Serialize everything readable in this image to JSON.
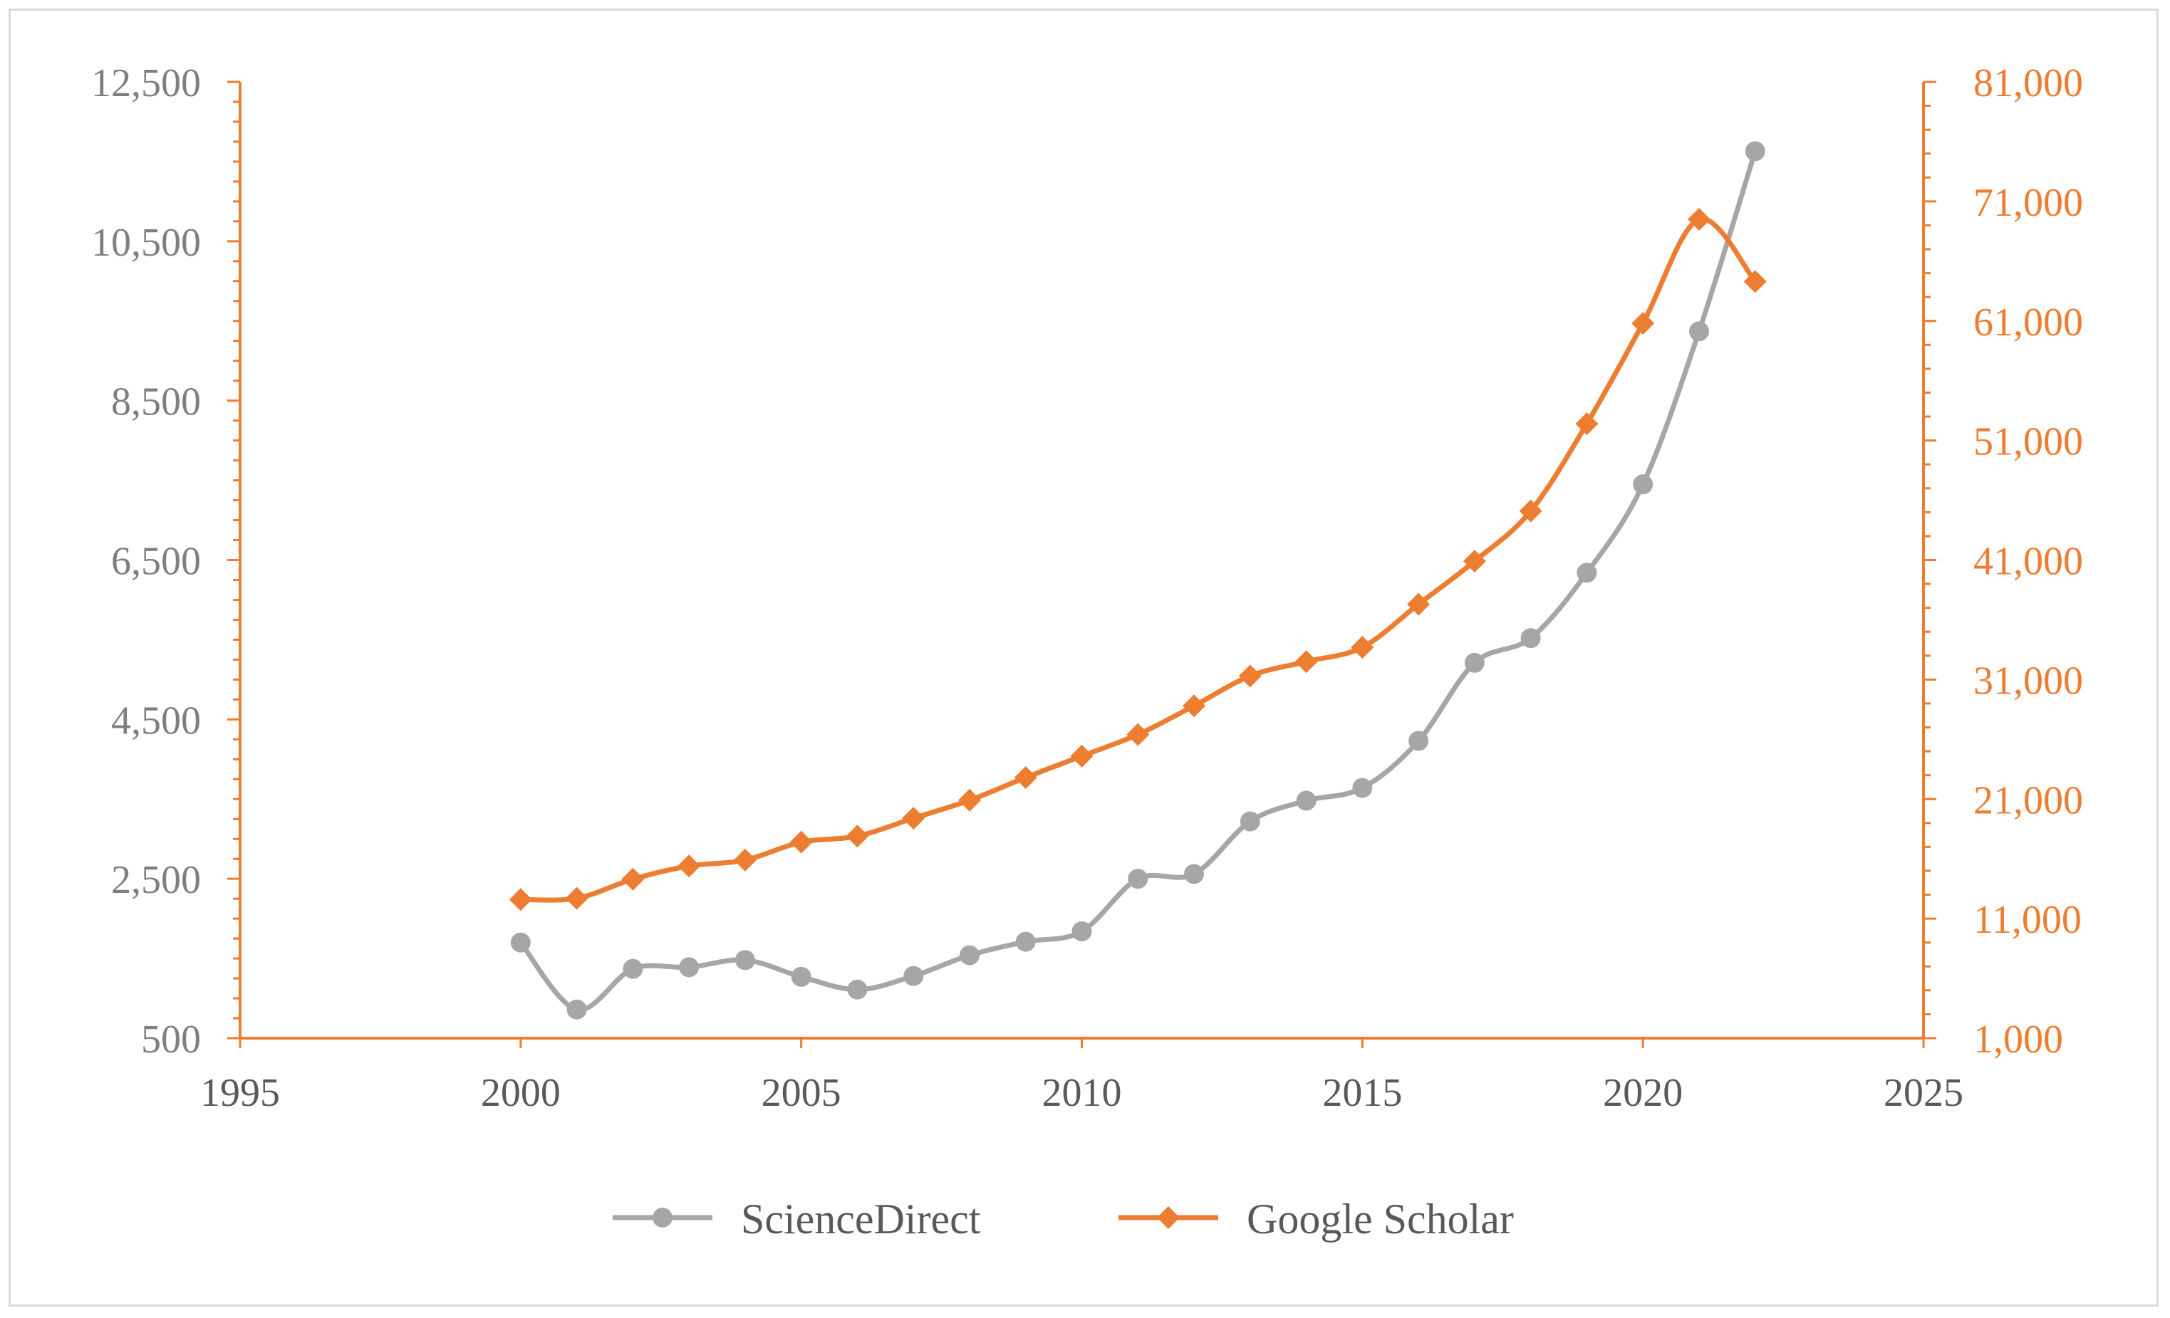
{
  "chart_data": {
    "type": "line",
    "title": "",
    "xlabel": "",
    "ylabel": "",
    "y2label": "",
    "xlim": [
      1995,
      2025
    ],
    "x_ticks": [
      "1995",
      "2000",
      "2005",
      "2010",
      "2015",
      "2020",
      "2025"
    ],
    "ylim_left": [
      500,
      12500
    ],
    "y_ticks_left": [
      "500",
      "2,500",
      "4,500",
      "6,500",
      "8,500",
      "10,500",
      "12,500"
    ],
    "ylim_right": [
      1000,
      81000
    ],
    "y_ticks_right": [
      "1,000",
      "11,000",
      "21,000",
      "31,000",
      "41,000",
      "51,000",
      "61,000",
      "71,000",
      "81,000"
    ],
    "grid": false,
    "legend_position": "bottom",
    "series": [
      {
        "name": "ScienceDirect",
        "axis": "left",
        "color": "#a6a6a6",
        "marker": "circle",
        "x": [
          2000,
          2001,
          2002,
          2003,
          2004,
          2005,
          2006,
          2007,
          2008,
          2009,
          2010,
          2011,
          2012,
          2013,
          2014,
          2015,
          2016,
          2017,
          2018,
          2019,
          2020,
          2021,
          2022
        ],
        "values": [
          1700,
          860,
          1370,
          1390,
          1480,
          1270,
          1110,
          1280,
          1540,
          1710,
          1840,
          2500,
          2560,
          3220,
          3480,
          3640,
          4230,
          5210,
          5520,
          6340,
          7450,
          9370,
          11630
        ]
      },
      {
        "name": "Google Scholar",
        "axis": "right",
        "color": "#ed7d31",
        "marker": "diamond",
        "x": [
          2000,
          2001,
          2002,
          2003,
          2004,
          2005,
          2006,
          2007,
          2008,
          2009,
          2010,
          2011,
          2012,
          2013,
          2014,
          2015,
          2016,
          2017,
          2018,
          2019,
          2020,
          2021,
          2022
        ],
        "values": [
          12600,
          12700,
          14300,
          15400,
          15900,
          17400,
          17900,
          19400,
          20900,
          22800,
          24600,
          26400,
          28800,
          31300,
          32500,
          33700,
          37300,
          40900,
          45100,
          52400,
          60800,
          69500,
          64300
        ]
      }
    ]
  }
}
